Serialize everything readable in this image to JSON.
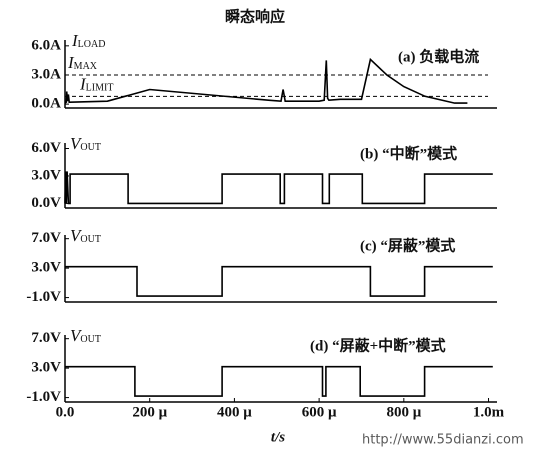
{
  "chart_data": [
    {
      "type": "line",
      "title": "瞬态响应",
      "label": "(a) 负载电流",
      "ylabel": {
        "text": "I",
        "sub": "LOAD"
      },
      "color": "#000000",
      "xlim": [
        0,
        1020
      ],
      "ylim": [
        -0.4,
        6.6
      ],
      "yticks": [
        {
          "value": 6,
          "label": "6.0A"
        },
        {
          "value": 3,
          "label": "3.0A"
        },
        {
          "value": 0,
          "label": "0.0A"
        }
      ],
      "hlines": [
        {
          "value": 3,
          "label": {
            "text": "I",
            "sub": "MAX"
          }
        },
        {
          "value": 0.8,
          "label": {
            "text": "I",
            "sub": "LIMIT"
          }
        }
      ],
      "x": [
        0,
        3,
        4,
        6,
        8,
        10,
        12,
        100,
        200,
        480,
        510,
        515,
        520,
        600,
        612,
        617,
        620,
        623,
        650,
        700,
        721,
        760,
        800,
        850,
        920,
        950
      ],
      "values": [
        0.1,
        0.2,
        1.3,
        0.3,
        1.0,
        0.2,
        0.2,
        0.3,
        1.5,
        0.4,
        0.3,
        1.5,
        0.3,
        0.3,
        0.4,
        4.5,
        0.6,
        0.4,
        0.5,
        0.5,
        4.6,
        3.0,
        1.8,
        0.8,
        0.1,
        0.1
      ]
    },
    {
      "type": "line",
      "label": "(b) “中断”模式",
      "ylabel": {
        "text": "V",
        "sub": "OUT"
      },
      "color": "#000000",
      "xlim": [
        0,
        1020
      ],
      "ylim": [
        -0.5,
        6.6
      ],
      "yticks": [
        {
          "value": 6,
          "label": "6.0V"
        },
        {
          "value": 3,
          "label": "3.0V"
        },
        {
          "value": 0,
          "label": "0.0V"
        }
      ],
      "x": [
        0,
        2,
        3,
        5,
        8,
        12,
        12,
        149,
        149,
        371,
        371,
        508,
        508,
        518,
        518,
        608,
        608,
        624,
        624,
        702,
        702,
        849,
        849,
        1010
      ],
      "values": [
        0,
        3.5,
        0,
        3.5,
        0,
        0,
        3.2,
        3.2,
        0,
        0,
        3.2,
        3.2,
        0,
        0,
        3.2,
        3.2,
        0,
        0,
        3.2,
        3.2,
        0,
        0,
        3.2,
        3.2
      ]
    },
    {
      "type": "line",
      "label": "(c) “屏蔽”模式",
      "ylabel": {
        "text": "V",
        "sub": "OUT"
      },
      "color": "#000000",
      "xlim": [
        0,
        1020
      ],
      "ylim": [
        -1.6,
        7.5
      ],
      "yticks": [
        {
          "value": 7,
          "label": "7.0V"
        },
        {
          "value": 3,
          "label": "3.0V"
        },
        {
          "value": -1,
          "label": "-1.0V"
        }
      ],
      "x": [
        0,
        170,
        170,
        371,
        371,
        721,
        721,
        849,
        849,
        1010
      ],
      "values": [
        3.2,
        3.2,
        -0.8,
        -0.8,
        3.2,
        3.2,
        -0.8,
        -0.8,
        3.2,
        3.2
      ]
    },
    {
      "type": "line",
      "label": "(d) “屏蔽+中断”模式",
      "ylabel": {
        "text": "V",
        "sub": "OUT"
      },
      "color": "#000000",
      "xlim": [
        0,
        1020
      ],
      "ylim": [
        -1.6,
        7.5
      ],
      "yticks": [
        {
          "value": 7,
          "label": "7.0V"
        },
        {
          "value": 3,
          "label": "3.0V"
        },
        {
          "value": -1,
          "label": "-1.0V"
        }
      ],
      "xticks": [
        {
          "value": 0,
          "label": "0.0"
        },
        {
          "value": 200,
          "label": "200 μ"
        },
        {
          "value": 400,
          "label": "400 μ"
        },
        {
          "value": 600,
          "label": "600 μ"
        },
        {
          "value": 800,
          "label": "800 μ"
        },
        {
          "value": 1000,
          "label": "1.0m"
        }
      ],
      "xlabel": "t/s",
      "watermark": "http://www.55dianzi.com",
      "x": [
        0,
        165,
        165,
        371,
        371,
        608,
        608,
        616,
        616,
        697,
        697,
        849,
        849,
        1010
      ],
      "values": [
        3.2,
        3.2,
        -0.8,
        -0.8,
        3.2,
        3.2,
        -0.8,
        -0.8,
        3.2,
        3.2,
        -0.8,
        -0.8,
        3.2,
        3.2
      ]
    }
  ]
}
